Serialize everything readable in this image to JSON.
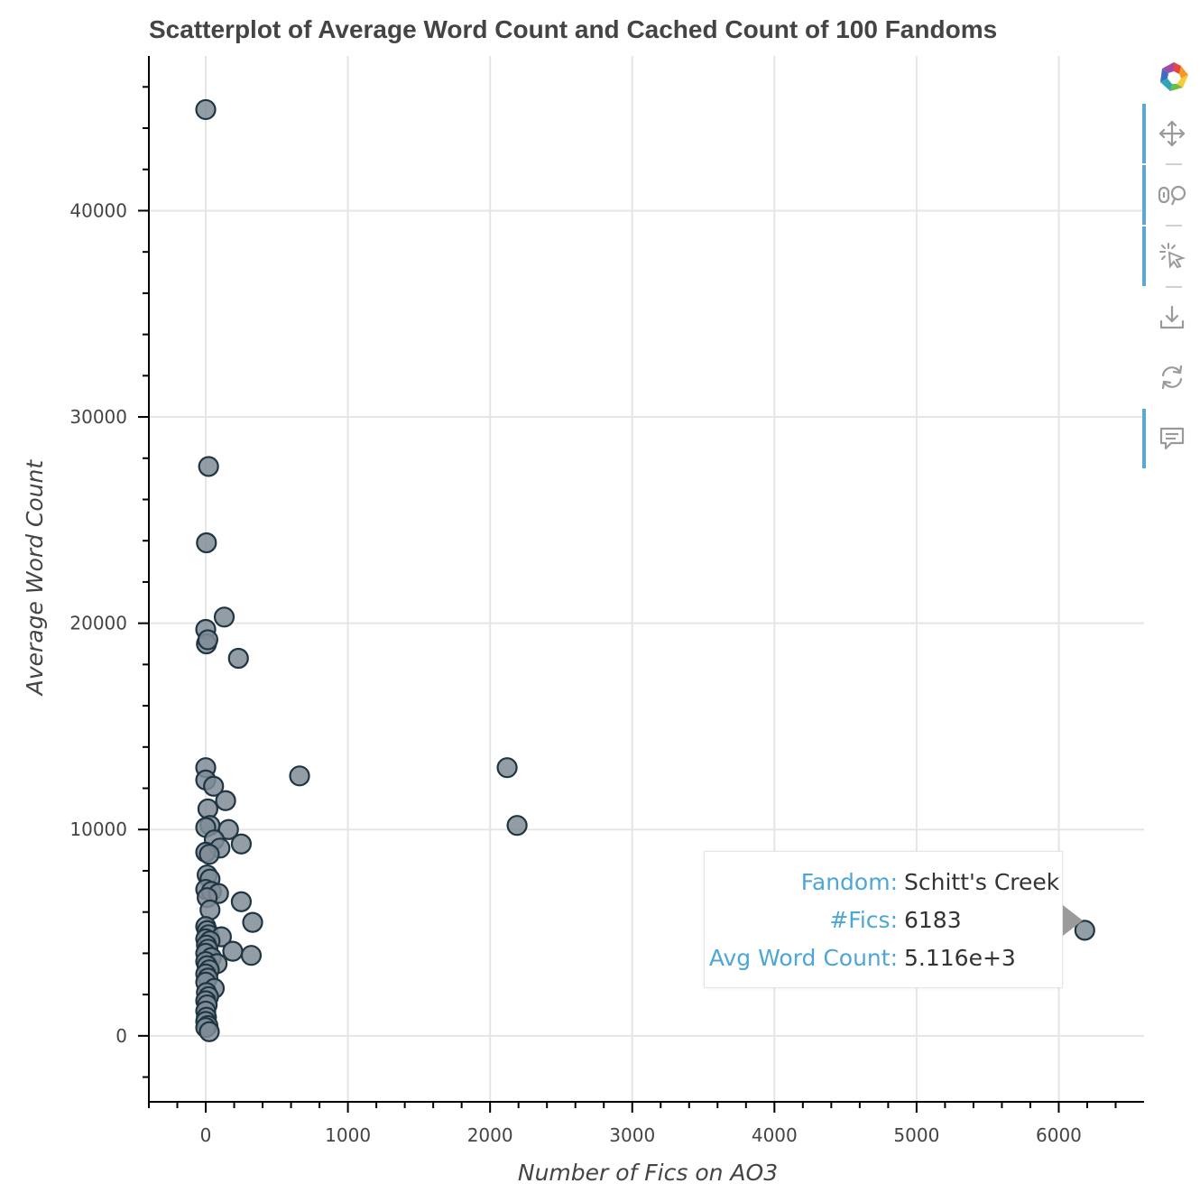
{
  "chart_data": {
    "type": "scatter",
    "title": "Scatterplot of Average Word Count and Cached Count of 100 Fandoms",
    "xlabel": "Number of Fics on AO3",
    "ylabel": "Average Word Count",
    "xlim": [
      -400,
      6600
    ],
    "ylim": [
      -3200,
      47500
    ],
    "x_ticks": [
      0,
      1000,
      2000,
      3000,
      4000,
      5000,
      6000
    ],
    "y_ticks": [
      0,
      10000,
      20000,
      30000,
      40000
    ],
    "grid": true,
    "marker_color": "#7f8c95",
    "marker_edge": "#1f3542",
    "points": [
      {
        "x": 0,
        "y": 44900
      },
      {
        "x": 20,
        "y": 27600
      },
      {
        "x": 5,
        "y": 23900
      },
      {
        "x": 130,
        "y": 20300
      },
      {
        "x": 0,
        "y": 19700
      },
      {
        "x": 5,
        "y": 19000
      },
      {
        "x": 15,
        "y": 19200
      },
      {
        "x": 230,
        "y": 18300
      },
      {
        "x": 0,
        "y": 13000
      },
      {
        "x": 0,
        "y": 12400
      },
      {
        "x": 55,
        "y": 12100
      },
      {
        "x": 140,
        "y": 11400
      },
      {
        "x": 15,
        "y": 11000
      },
      {
        "x": 30,
        "y": 10200
      },
      {
        "x": 0,
        "y": 10100
      },
      {
        "x": 160,
        "y": 10000
      },
      {
        "x": 60,
        "y": 9500
      },
      {
        "x": 250,
        "y": 9300
      },
      {
        "x": 100,
        "y": 9100
      },
      {
        "x": 0,
        "y": 8900
      },
      {
        "x": 25,
        "y": 8800
      },
      {
        "x": 10,
        "y": 7800
      },
      {
        "x": 30,
        "y": 7600
      },
      {
        "x": 0,
        "y": 7100
      },
      {
        "x": 40,
        "y": 7000
      },
      {
        "x": 90,
        "y": 6900
      },
      {
        "x": 10,
        "y": 6700
      },
      {
        "x": 250,
        "y": 6500
      },
      {
        "x": 30,
        "y": 6100
      },
      {
        "x": 330,
        "y": 5500
      },
      {
        "x": 0,
        "y": 5300
      },
      {
        "x": 10,
        "y": 5100
      },
      {
        "x": 20,
        "y": 4900
      },
      {
        "x": 110,
        "y": 4800
      },
      {
        "x": 0,
        "y": 4700
      },
      {
        "x": 30,
        "y": 4600
      },
      {
        "x": 5,
        "y": 4400
      },
      {
        "x": 15,
        "y": 4200
      },
      {
        "x": 190,
        "y": 4100
      },
      {
        "x": 0,
        "y": 4000
      },
      {
        "x": 320,
        "y": 3900
      },
      {
        "x": 40,
        "y": 3800
      },
      {
        "x": 0,
        "y": 3600
      },
      {
        "x": 80,
        "y": 3500
      },
      {
        "x": 10,
        "y": 3400
      },
      {
        "x": 25,
        "y": 3200
      },
      {
        "x": 0,
        "y": 3000
      },
      {
        "x": 15,
        "y": 2800
      },
      {
        "x": 0,
        "y": 2600
      },
      {
        "x": 60,
        "y": 2300
      },
      {
        "x": 5,
        "y": 2100
      },
      {
        "x": 20,
        "y": 1900
      },
      {
        "x": 0,
        "y": 1700
      },
      {
        "x": 10,
        "y": 1500
      },
      {
        "x": 0,
        "y": 1200
      },
      {
        "x": 5,
        "y": 900
      },
      {
        "x": 0,
        "y": 700
      },
      {
        "x": 15,
        "y": 500
      },
      {
        "x": 0,
        "y": 400
      },
      {
        "x": 25,
        "y": 200
      },
      {
        "x": 660,
        "y": 12600
      },
      {
        "x": 2120,
        "y": 13000
      },
      {
        "x": 2190,
        "y": 10200
      },
      {
        "x": 6183,
        "y": 5116
      }
    ]
  },
  "tooltip": {
    "rows": [
      {
        "key": "Fandom:",
        "value": "Schitt's Creek"
      },
      {
        "key": "#Fics:",
        "value": "6183"
      },
      {
        "key": "Avg Word Count:",
        "value": "5.116e+3"
      }
    ]
  },
  "toolbar": {
    "logo": "bokeh-logo-icon",
    "tools": [
      {
        "name": "pan-tool",
        "icon": "move-arrows-icon",
        "active": true
      },
      {
        "name": "box-zoom-tool",
        "icon": "box-zoom-icon",
        "active": true
      },
      {
        "name": "tap-tool",
        "icon": "tap-cursor-icon",
        "active": true
      },
      {
        "name": "save-tool",
        "icon": "download-icon",
        "active": false
      },
      {
        "name": "reset-tool",
        "icon": "reset-icon",
        "active": false
      },
      {
        "name": "hover-tool",
        "icon": "chat-bubble-icon",
        "active": true
      }
    ]
  }
}
